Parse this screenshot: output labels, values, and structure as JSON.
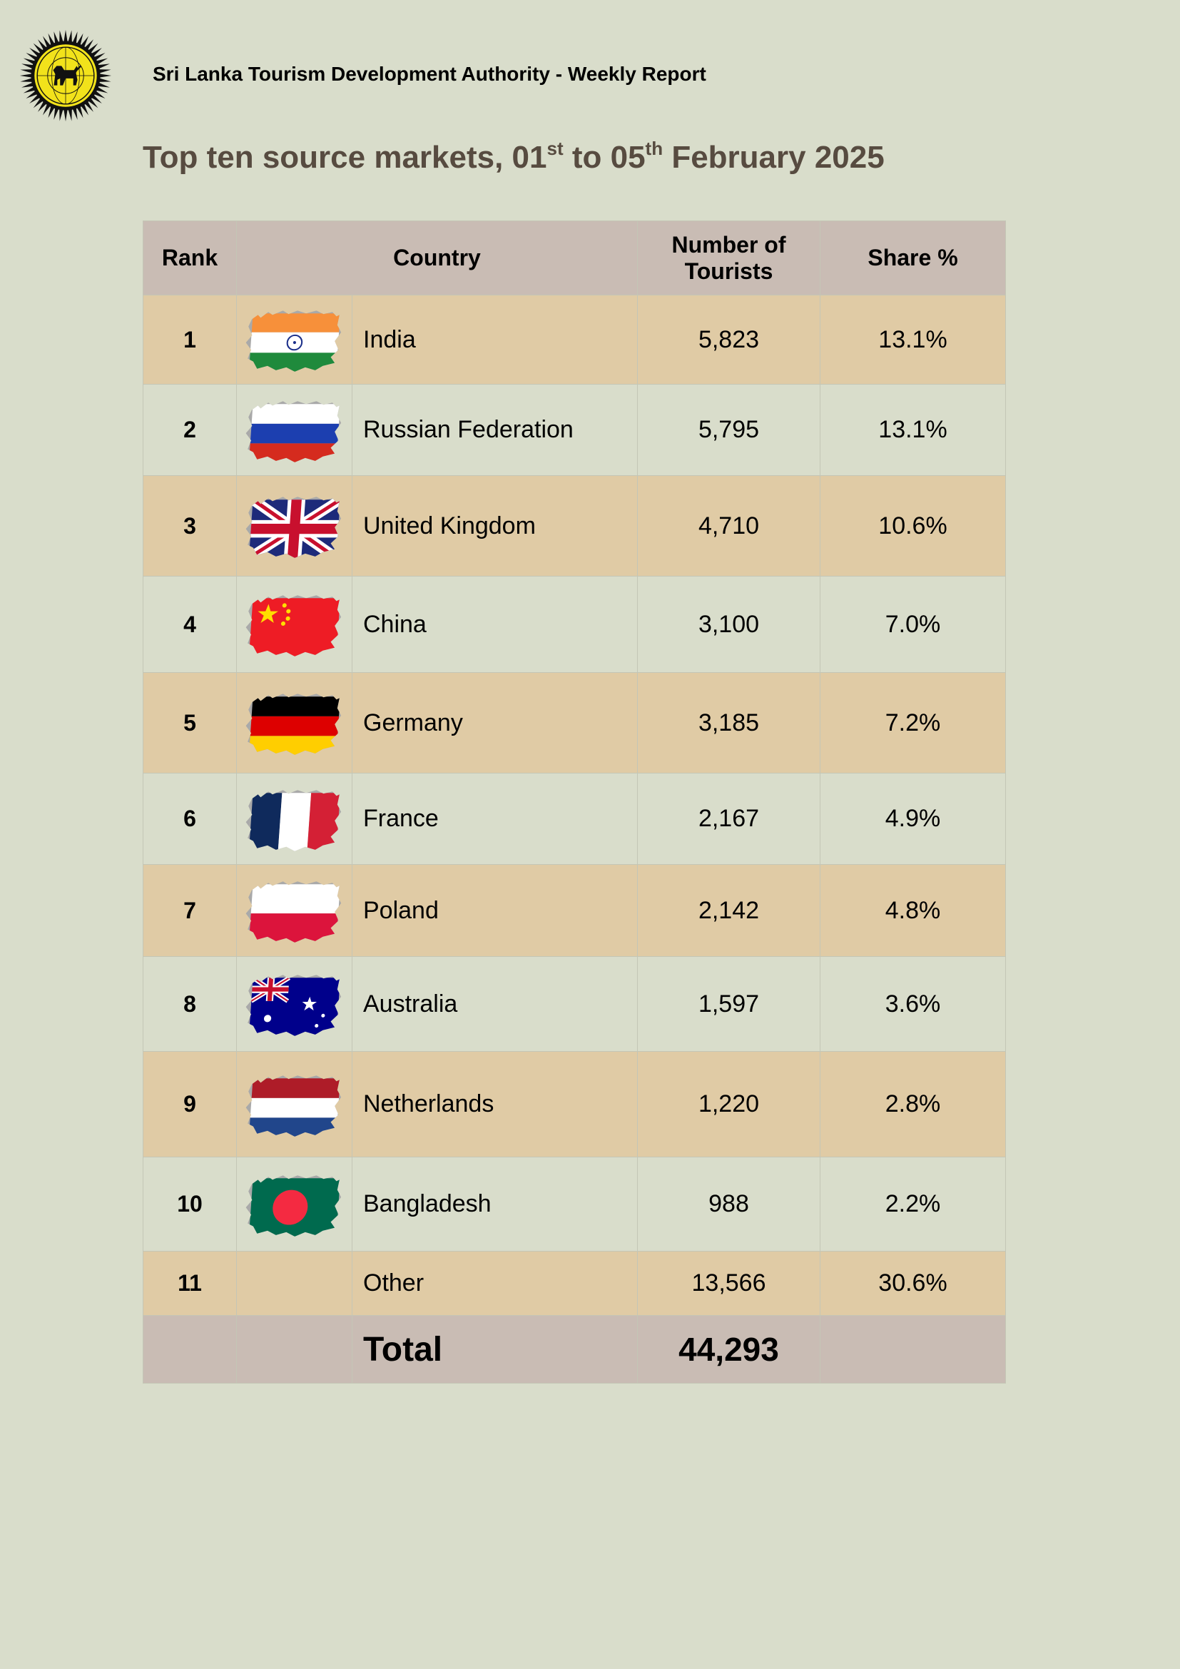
{
  "header": {
    "report_title": "Sri Lanka Tourism Development Authority - Weekly Report",
    "logo_icon": "sltda-lion-emblem"
  },
  "title": {
    "part1": "Top ten source markets, 01",
    "sup1": "st",
    "part2": " to 05",
    "sup2": "th",
    "part3": " February 2025"
  },
  "table": {
    "columns": {
      "rank": "Rank",
      "country": "Country",
      "tourists_line1": "Number of",
      "tourists_line2": "Tourists",
      "share": "Share %"
    },
    "rows": [
      {
        "rank": "1",
        "country": "India",
        "tourists": "5,823",
        "share": "13.1%",
        "flag": "india-flag-icon"
      },
      {
        "rank": "2",
        "country": "Russian Federation",
        "tourists": "5,795",
        "share": "13.1%",
        "flag": "russia-flag-icon"
      },
      {
        "rank": "3",
        "country": "United Kingdom",
        "tourists": "4,710",
        "share": "10.6%",
        "flag": "uk-flag-icon"
      },
      {
        "rank": "4",
        "country": "China",
        "tourists": "3,100",
        "share": "7.0%",
        "flag": "china-flag-icon"
      },
      {
        "rank": "5",
        "country": "Germany",
        "tourists": "3,185",
        "share": "7.2%",
        "flag": "germany-flag-icon"
      },
      {
        "rank": "6",
        "country": "France",
        "tourists": "2,167",
        "share": "4.9%",
        "flag": "france-flag-icon"
      },
      {
        "rank": "7",
        "country": "Poland",
        "tourists": "2,142",
        "share": "4.8%",
        "flag": "poland-flag-icon"
      },
      {
        "rank": "8",
        "country": "Australia",
        "tourists": "1,597",
        "share": "3.6%",
        "flag": "australia-flag-icon"
      },
      {
        "rank": "9",
        "country": "Netherlands",
        "tourists": "1,220",
        "share": "2.8%",
        "flag": "netherlands-flag-icon"
      },
      {
        "rank": "10",
        "country": "Bangladesh",
        "tourists": "988",
        "share": "2.2%",
        "flag": "bangladesh-flag-icon"
      },
      {
        "rank": "11",
        "country": "Other",
        "tourists": "13,566",
        "share": "30.6%",
        "flag": ""
      }
    ],
    "total": {
      "label": "Total",
      "tourists": "44,293"
    }
  },
  "colors": {
    "page_background": "#d9ddcb",
    "header_row": "#c9bcb4",
    "odd_row": "#e0cba5",
    "title_text": "#574b40"
  }
}
